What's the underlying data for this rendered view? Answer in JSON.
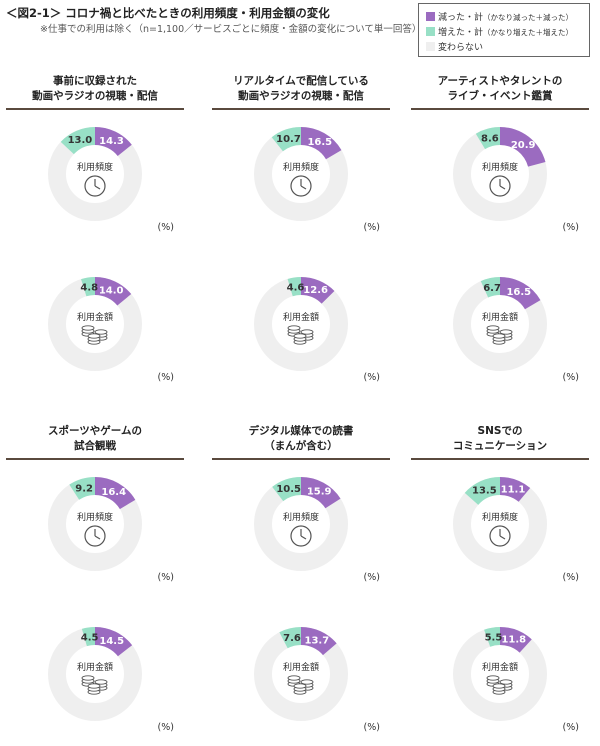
{
  "header": {
    "title": "＜図2-1＞ コロナ禍と比べたときの利用頻度・利用金額の変化",
    "subtitle": "※仕事での利用は除く（n=1,100／サービスごとに頻度・金額の変化について単一回答）"
  },
  "legend": {
    "items": [
      {
        "label": "減った・計",
        "sub": "（かなり減った＋減った）",
        "color": "#9b6bc0"
      },
      {
        "label": "増えた・計",
        "sub": "（かなり増えた＋増えた）",
        "color": "#98e0c6"
      },
      {
        "label": "変わらない",
        "sub": "",
        "color": "#efefef"
      }
    ]
  },
  "labels": {
    "frequency": "利用頻度",
    "amount": "利用金額",
    "unit": "(%)"
  },
  "chart_data": [
    {
      "type": "pie",
      "title": [
        "事前に収録された",
        "動画やラジオの視聴・配信"
      ],
      "metric": "利用頻度",
      "series": [
        {
          "name": "減った・計",
          "value": 14.3
        },
        {
          "name": "増えた・計",
          "value": 13.0
        }
      ]
    },
    {
      "type": "pie",
      "title": [
        "事前に収録された",
        "動画やラジオの視聴・配信"
      ],
      "metric": "利用金額",
      "series": [
        {
          "name": "減った・計",
          "value": 14.0
        },
        {
          "name": "増えた・計",
          "value": 4.8
        }
      ]
    },
    {
      "type": "pie",
      "title": [
        "リアルタイムで配信している",
        "動画やラジオの視聴・配信"
      ],
      "metric": "利用頻度",
      "series": [
        {
          "name": "減った・計",
          "value": 16.5
        },
        {
          "name": "増えた・計",
          "value": 10.7
        }
      ]
    },
    {
      "type": "pie",
      "title": [
        "リアルタイムで配信している",
        "動画やラジオの視聴・配信"
      ],
      "metric": "利用金額",
      "series": [
        {
          "name": "減った・計",
          "value": 12.6
        },
        {
          "name": "増えた・計",
          "value": 4.6
        }
      ]
    },
    {
      "type": "pie",
      "title": [
        "アーティストやタレントの",
        "ライブ・イベント鑑賞"
      ],
      "metric": "利用頻度",
      "series": [
        {
          "name": "減った・計",
          "value": 20.9
        },
        {
          "name": "増えた・計",
          "value": 8.6
        }
      ]
    },
    {
      "type": "pie",
      "title": [
        "アーティストやタレントの",
        "ライブ・イベント鑑賞"
      ],
      "metric": "利用金額",
      "series": [
        {
          "name": "減った・計",
          "value": 16.5
        },
        {
          "name": "増えた・計",
          "value": 6.7
        }
      ]
    },
    {
      "type": "pie",
      "title": [
        "スポーツやゲームの",
        "試合観戦"
      ],
      "metric": "利用頻度",
      "series": [
        {
          "name": "減った・計",
          "value": 16.4
        },
        {
          "name": "増えた・計",
          "value": 9.2
        }
      ]
    },
    {
      "type": "pie",
      "title": [
        "スポーツやゲームの",
        "試合観戦"
      ],
      "metric": "利用金額",
      "series": [
        {
          "name": "減った・計",
          "value": 14.5
        },
        {
          "name": "増えた・計",
          "value": 4.5
        }
      ]
    },
    {
      "type": "pie",
      "title": [
        "デジタル媒体での読書",
        "（まんが含む）"
      ],
      "metric": "利用頻度",
      "series": [
        {
          "name": "減った・計",
          "value": 15.9
        },
        {
          "name": "増えた・計",
          "value": 10.5
        }
      ]
    },
    {
      "type": "pie",
      "title": [
        "デジタル媒体での読書",
        "（まんが含む）"
      ],
      "metric": "利用金額",
      "series": [
        {
          "name": "減った・計",
          "value": 13.7
        },
        {
          "name": "増えた・計",
          "value": 7.6
        }
      ]
    },
    {
      "type": "pie",
      "title": [
        "SNSでの",
        "コミュニケーション"
      ],
      "metric": "利用頻度",
      "series": [
        {
          "name": "減った・計",
          "value": 11.1
        },
        {
          "name": "増えた・計",
          "value": 13.5
        }
      ]
    },
    {
      "type": "pie",
      "title": [
        "SNSでの",
        "コミュニケーション"
      ],
      "metric": "利用金額",
      "series": [
        {
          "name": "減った・計",
          "value": 11.8
        },
        {
          "name": "増えた・計",
          "value": 5.5
        }
      ]
    }
  ]
}
